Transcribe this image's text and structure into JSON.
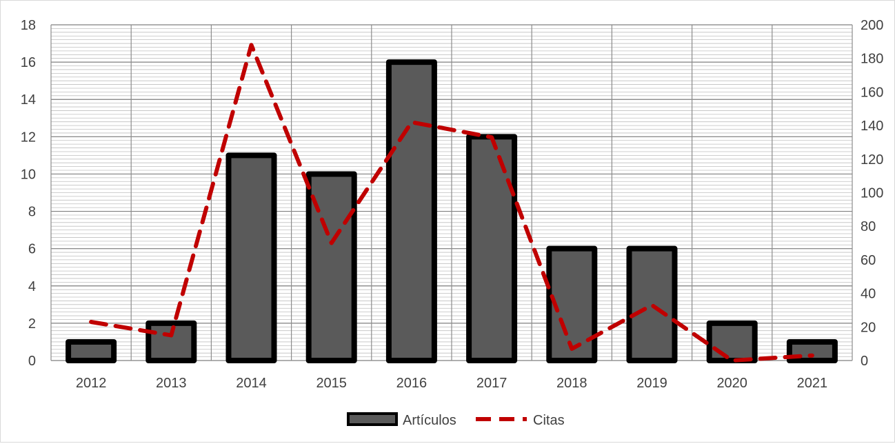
{
  "chart_data": {
    "type": "bar",
    "title": "",
    "xlabel": "",
    "ylabel": "",
    "y2label": "",
    "categories": [
      "2012",
      "2013",
      "2014",
      "2015",
      "2016",
      "2017",
      "2018",
      "2019",
      "2020",
      "2021"
    ],
    "series": [
      {
        "name": "Artículos",
        "type": "bar",
        "axis": "left",
        "color": "#5a5a5a",
        "border_color": "#000000",
        "values": [
          1,
          2,
          11,
          10,
          16,
          12,
          6,
          6,
          2,
          1
        ]
      },
      {
        "name": "Citas",
        "type": "line",
        "axis": "right",
        "color": "#c00000",
        "dash": "dashed",
        "values": [
          23,
          15,
          188,
          70,
          142,
          133,
          7,
          33,
          0,
          3
        ]
      }
    ],
    "ylim": [
      0,
      18
    ],
    "yticks": [
      "0",
      "2",
      "4",
      "6",
      "8",
      "10",
      "12",
      "14",
      "16",
      "18"
    ],
    "y2lim": [
      0,
      200
    ],
    "y2ticks": [
      "0",
      "20",
      "40",
      "60",
      "80",
      "100",
      "120",
      "140",
      "160",
      "180",
      "200"
    ],
    "grid": true,
    "legend_position": "bottom"
  }
}
